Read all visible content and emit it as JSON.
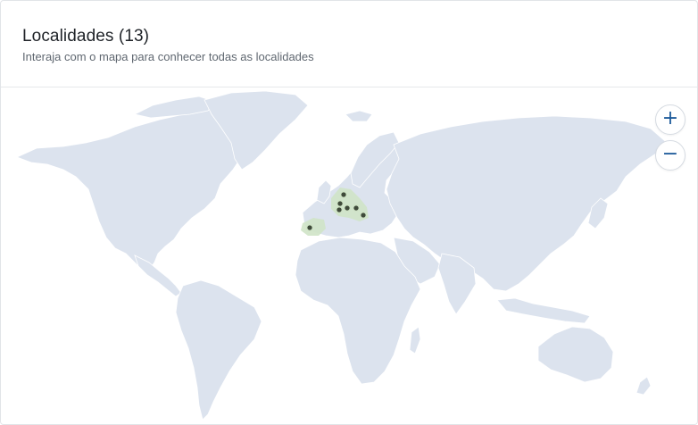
{
  "header": {
    "title": "Localidades (13)",
    "subtitle": "Interaja com o mapa para conhecer todas as localidades"
  },
  "map": {
    "zoom_in_label": "+",
    "zoom_out_label": "−",
    "land_color": "#dce3ee",
    "highlight_color": "#cfe3c6",
    "pin_color": "#3f4a3a"
  }
}
